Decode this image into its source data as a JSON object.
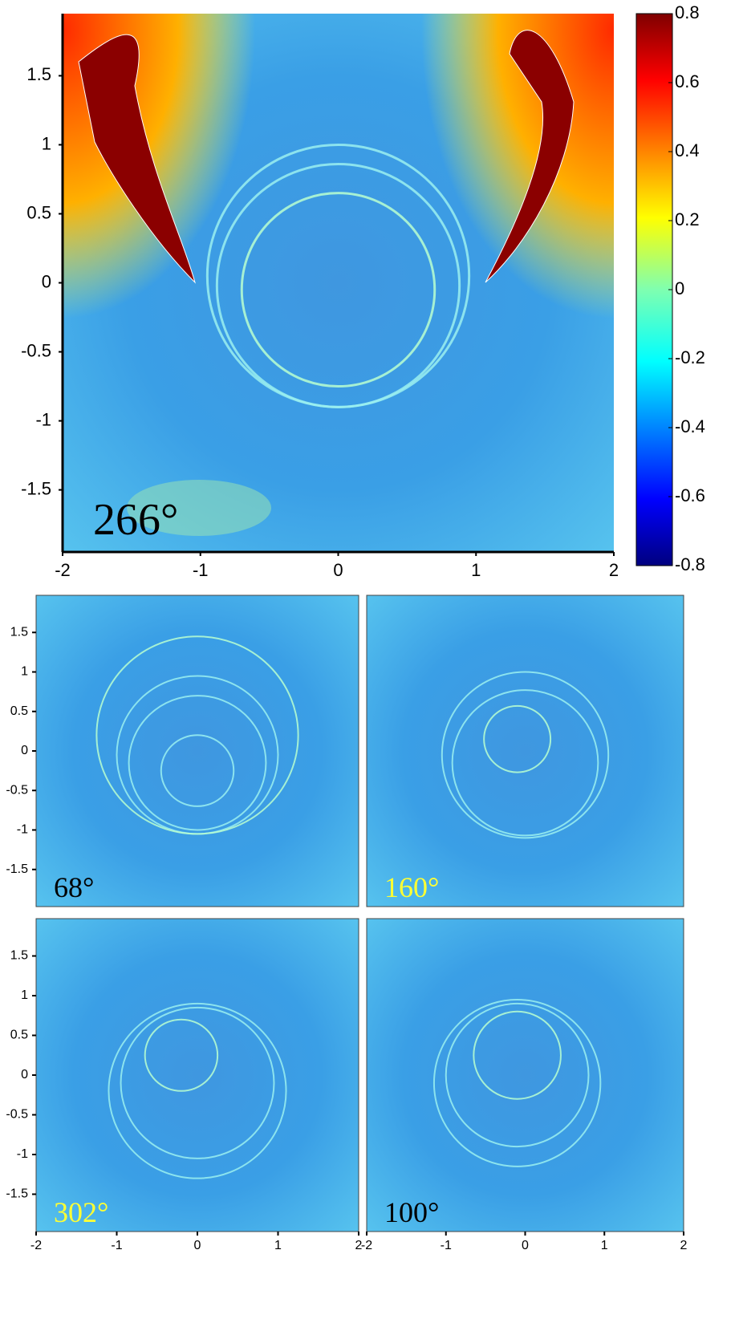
{
  "chart_data": [
    {
      "type": "heatmap",
      "label": "266°",
      "label_color": "#000000",
      "colormap": "jet",
      "xlim": [
        -2,
        2
      ],
      "ylim": [
        -1.95,
        1.95
      ],
      "xticks": [
        -2,
        -1,
        0,
        1,
        2
      ],
      "yticks": [
        1.5,
        1,
        0.5,
        0,
        -0.5,
        -1,
        -1.5
      ],
      "colorbar": {
        "lim": [
          -0.8,
          0.8
        ],
        "ticks": [
          0.8,
          0.6,
          0.4,
          0.2,
          0,
          -0.2,
          -0.4,
          -0.6,
          -0.8
        ]
      }
    },
    {
      "type": "heatmap",
      "label": "68°",
      "label_color": "#000000",
      "colormap": "jet",
      "xlim": [
        -2,
        2
      ],
      "ylim": [
        -1.97,
        1.97
      ],
      "yticks": [
        1.5,
        1,
        0.5,
        0,
        -0.5,
        -1,
        -1.5
      ]
    },
    {
      "type": "heatmap",
      "label": "160°",
      "label_color": "#ffff33",
      "colormap": "jet",
      "xlim": [
        -2,
        2
      ],
      "ylim": [
        -1.97,
        1.97
      ]
    },
    {
      "type": "heatmap",
      "label": "302°",
      "label_color": "#ffff33",
      "colormap": "jet",
      "xlim": [
        -2,
        2
      ],
      "ylim": [
        -1.97,
        1.97
      ],
      "xticks": [
        -2,
        -1,
        0,
        1,
        2
      ],
      "yticks": [
        1.5,
        1,
        0.5,
        0,
        -0.5,
        -1,
        -1.5
      ]
    },
    {
      "type": "heatmap",
      "label": "100°",
      "label_color": "#000000",
      "colormap": "jet",
      "xlim": [
        -2,
        2
      ],
      "ylim": [
        -1.97,
        1.97
      ],
      "xticks": [
        -2,
        -1,
        0,
        1,
        2
      ]
    }
  ]
}
